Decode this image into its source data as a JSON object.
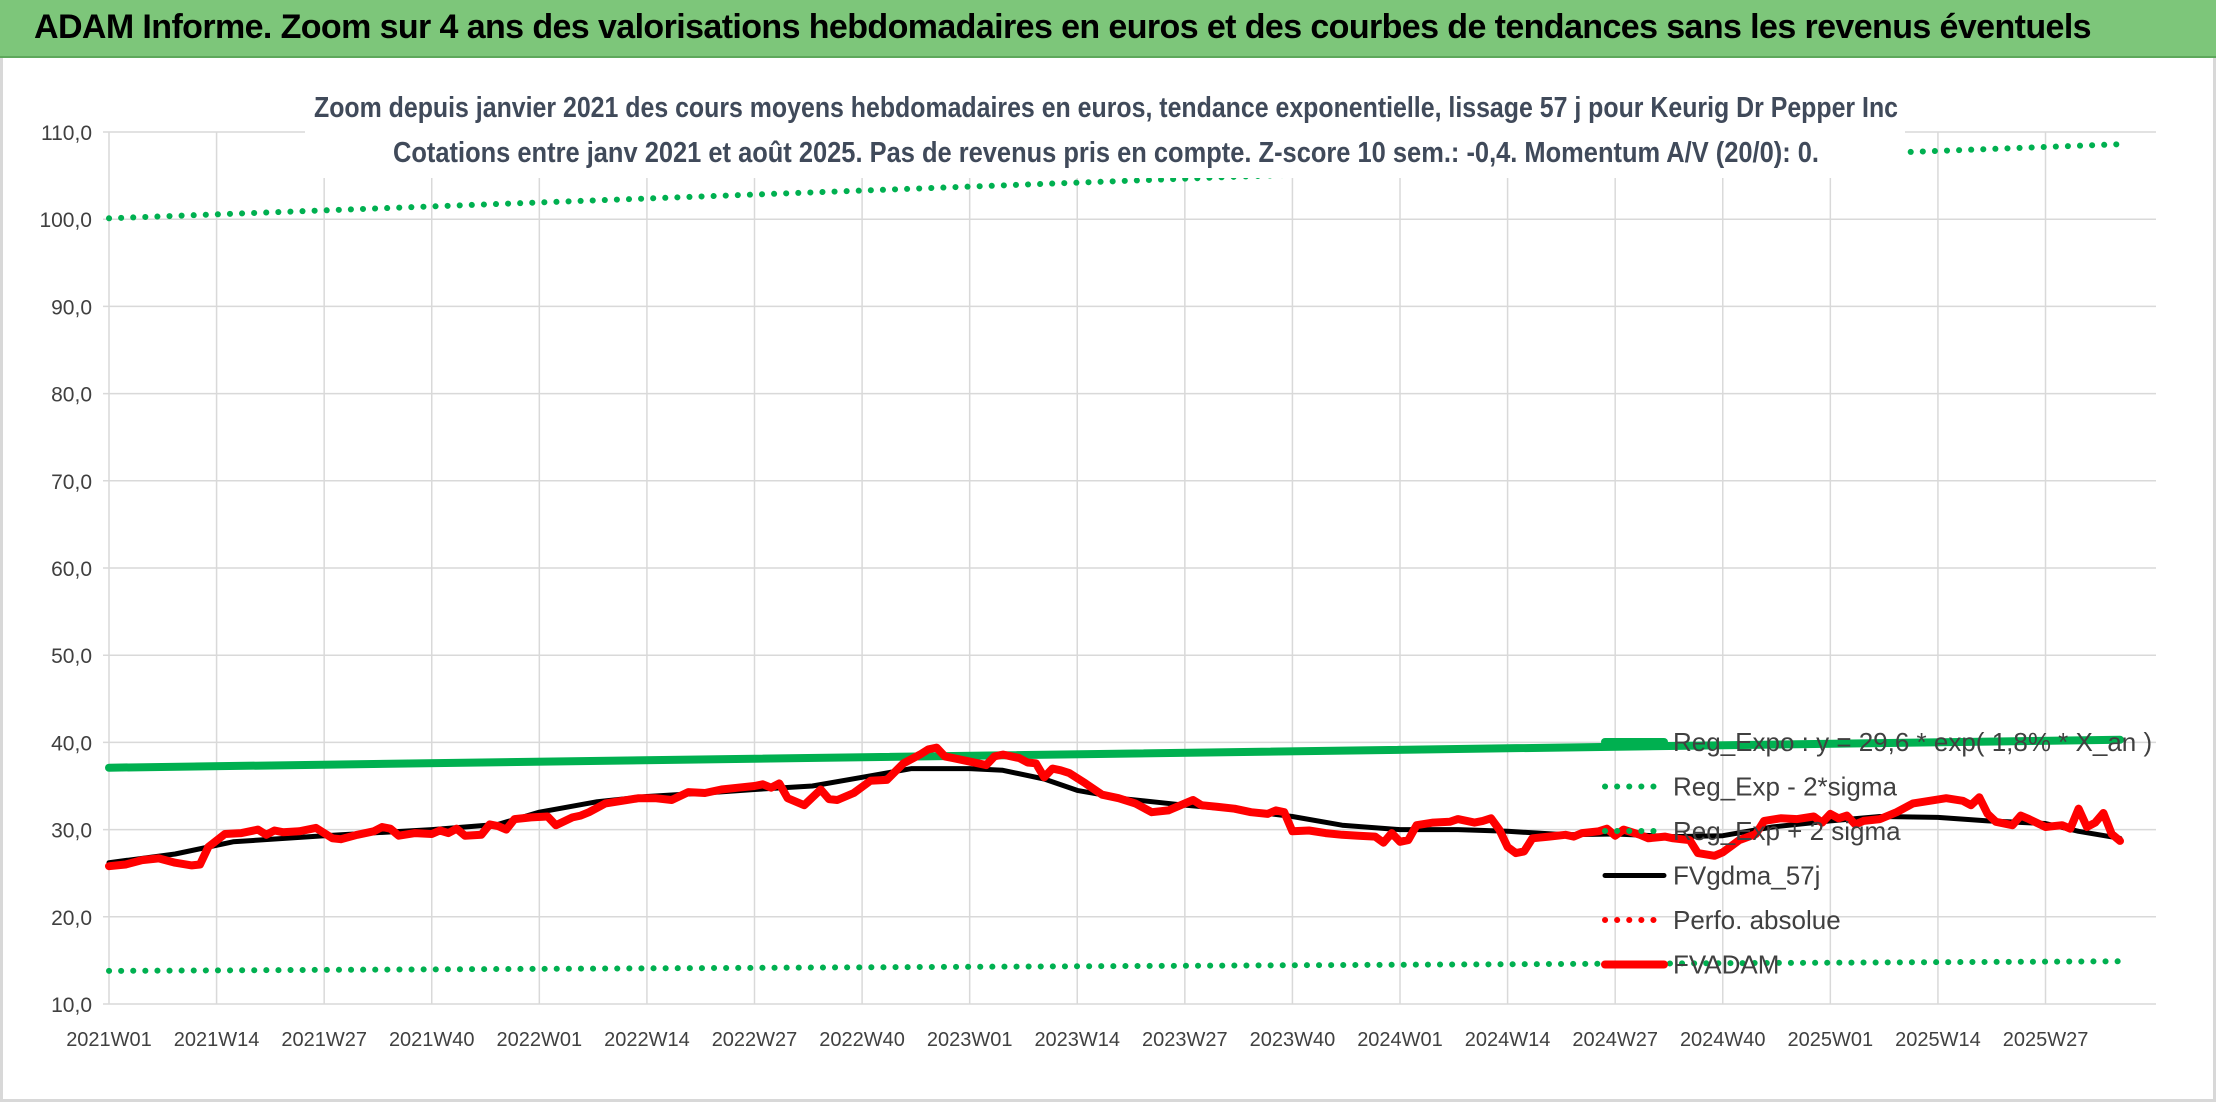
{
  "banner": {
    "title": "ADAM Informe. Zoom sur 4 ans des valorisations hebdomadaires en euros et des courbes de tendances sans les revenus éventuels"
  },
  "colors": {
    "banner_bg": "#7dc67a",
    "trend_green": "#00b050",
    "smooth_black": "#000000",
    "price_red": "#ff0000",
    "grid": "#d9d9d9"
  },
  "chart_data": {
    "type": "line",
    "title_lines": [
      "Zoom depuis janvier 2021 des cours moyens hebdomadaires en euros, tendance exponentielle, lissage 57 j pour Keurig Dr Pepper Inc",
      "Cotations entre janv 2021 et août 2025. Pas de revenus pris en compte. Z-score 10 sem.: -0,4. Momentum A/V (20/0): 0."
    ],
    "ylim": [
      10,
      110
    ],
    "y_ticks": [
      "10,0",
      "20,0",
      "30,0",
      "40,0",
      "50,0",
      "60,0",
      "70,0",
      "80,0",
      "90,0",
      "100,0",
      "110,0"
    ],
    "x_ticks": [
      "2021W01",
      "2021W14",
      "2021W27",
      "2021W40",
      "2022W01",
      "2022W14",
      "2022W27",
      "2022W40",
      "2023W01",
      "2023W14",
      "2023W27",
      "2023W40",
      "2024W01",
      "2024W14",
      "2024W27",
      "2024W40",
      "2025W01",
      "2025W14",
      "2025W27"
    ],
    "x_range_weeks": [
      0,
      243
    ],
    "grid": true,
    "legend_position": "right",
    "series": [
      {
        "name": "Reg_Expo : y = 29,6 * exp( 1,8% * X_an )",
        "style": "solid-thick",
        "color": "#00b050",
        "points": [
          [
            0,
            37.1
          ],
          [
            243,
            40.3
          ]
        ]
      },
      {
        "name": "Reg_Exp - 2*sigma",
        "style": "dotted",
        "color": "#00b050",
        "points": [
          [
            0,
            13.8
          ],
          [
            243,
            14.9
          ]
        ]
      },
      {
        "name": "Reg_Exp + 2 sigma",
        "style": "dotted",
        "color": "#00b050",
        "points": [
          [
            0,
            100.1
          ],
          [
            243,
            108.6
          ]
        ]
      },
      {
        "name": "FVgdma_57j",
        "style": "solid",
        "color": "#000000",
        "points": [
          [
            0,
            26.2
          ],
          [
            8,
            27.2
          ],
          [
            15,
            28.6
          ],
          [
            26,
            29.3
          ],
          [
            39,
            30.0
          ],
          [
            47,
            30.6
          ],
          [
            52,
            32.0
          ],
          [
            59,
            33.2
          ],
          [
            65,
            33.8
          ],
          [
            72,
            34.2
          ],
          [
            78,
            34.6
          ],
          [
            85,
            35.0
          ],
          [
            91,
            36.0
          ],
          [
            97,
            37.0
          ],
          [
            104,
            37.0
          ],
          [
            108,
            36.8
          ],
          [
            113,
            35.8
          ],
          [
            117,
            34.5
          ],
          [
            123,
            33.5
          ],
          [
            130,
            32.8
          ],
          [
            136,
            32.3
          ],
          [
            143,
            31.5
          ],
          [
            149,
            30.5
          ],
          [
            156,
            30.0
          ],
          [
            163,
            30.0
          ],
          [
            169,
            29.8
          ],
          [
            176,
            29.4
          ],
          [
            182,
            29.5
          ],
          [
            189,
            29.2
          ],
          [
            195,
            29.3
          ],
          [
            201,
            30.3
          ],
          [
            208,
            31.0
          ],
          [
            214,
            31.5
          ],
          [
            221,
            31.4
          ],
          [
            227,
            31.0
          ],
          [
            234,
            30.7
          ],
          [
            238,
            29.8
          ],
          [
            243,
            29.0
          ]
        ]
      },
      {
        "name": "Perfo. absolue",
        "style": "dotted",
        "color": "#ff0000",
        "points": []
      },
      {
        "name": "FVADAM",
        "style": "solid-thick",
        "color": "#ff0000",
        "points": [
          [
            0,
            25.8
          ],
          [
            2,
            26.0
          ],
          [
            4,
            26.5
          ],
          [
            6,
            26.7
          ],
          [
            8,
            26.2
          ],
          [
            10,
            25.9
          ],
          [
            11,
            26.0
          ],
          [
            12,
            28.0
          ],
          [
            14,
            29.5
          ],
          [
            16,
            29.6
          ],
          [
            18,
            30.0
          ],
          [
            19,
            29.4
          ],
          [
            20,
            29.9
          ],
          [
            21,
            29.7
          ],
          [
            23,
            29.8
          ],
          [
            25,
            30.2
          ],
          [
            27,
            29.0
          ],
          [
            28,
            28.9
          ],
          [
            30,
            29.4
          ],
          [
            32,
            29.8
          ],
          [
            33,
            30.3
          ],
          [
            34,
            30.1
          ],
          [
            35,
            29.3
          ],
          [
            37,
            29.6
          ],
          [
            39,
            29.5
          ],
          [
            40,
            29.9
          ],
          [
            41,
            29.6
          ],
          [
            42,
            30.1
          ],
          [
            43,
            29.3
          ],
          [
            45,
            29.4
          ],
          [
            46,
            30.6
          ],
          [
            47,
            30.4
          ],
          [
            48,
            30.0
          ],
          [
            49,
            31.2
          ],
          [
            51,
            31.4
          ],
          [
            53,
            31.5
          ],
          [
            54,
            30.5
          ],
          [
            56,
            31.4
          ],
          [
            57,
            31.6
          ],
          [
            58,
            32.0
          ],
          [
            60,
            33.0
          ],
          [
            62,
            33.3
          ],
          [
            64,
            33.6
          ],
          [
            66,
            33.6
          ],
          [
            68,
            33.4
          ],
          [
            70,
            34.3
          ],
          [
            72,
            34.2
          ],
          [
            74,
            34.6
          ],
          [
            76,
            34.8
          ],
          [
            78,
            35.0
          ],
          [
            79,
            35.2
          ],
          [
            80,
            34.8
          ],
          [
            81,
            35.3
          ],
          [
            82,
            33.6
          ],
          [
            84,
            32.8
          ],
          [
            86,
            34.6
          ],
          [
            87,
            33.5
          ],
          [
            88,
            33.4
          ],
          [
            90,
            34.2
          ],
          [
            92,
            35.6
          ],
          [
            94,
            35.7
          ],
          [
            96,
            37.6
          ],
          [
            98,
            38.6
          ],
          [
            99,
            39.2
          ],
          [
            100,
            39.4
          ],
          [
            101,
            38.4
          ],
          [
            102,
            38.2
          ],
          [
            104,
            37.8
          ],
          [
            106,
            37.4
          ],
          [
            107,
            38.4
          ],
          [
            108,
            38.6
          ],
          [
            110,
            38.2
          ],
          [
            111,
            37.7
          ],
          [
            112,
            37.6
          ],
          [
            113,
            36.0
          ],
          [
            114,
            37.0
          ],
          [
            115,
            36.8
          ],
          [
            116,
            36.5
          ],
          [
            118,
            35.3
          ],
          [
            120,
            34.0
          ],
          [
            122,
            33.6
          ],
          [
            124,
            33.0
          ],
          [
            126,
            32.0
          ],
          [
            128,
            32.2
          ],
          [
            130,
            33.0
          ],
          [
            131,
            33.4
          ],
          [
            132,
            32.8
          ],
          [
            134,
            32.6
          ],
          [
            136,
            32.4
          ],
          [
            138,
            32.0
          ],
          [
            140,
            31.8
          ],
          [
            141,
            32.2
          ],
          [
            142,
            32.0
          ],
          [
            143,
            29.8
          ],
          [
            145,
            29.9
          ],
          [
            147,
            29.6
          ],
          [
            149,
            29.4
          ],
          [
            151,
            29.3
          ],
          [
            153,
            29.2
          ],
          [
            154,
            28.5
          ],
          [
            155,
            29.6
          ],
          [
            156,
            28.6
          ],
          [
            157,
            28.8
          ],
          [
            158,
            30.5
          ],
          [
            160,
            30.8
          ],
          [
            162,
            30.9
          ],
          [
            163,
            31.2
          ],
          [
            165,
            30.8
          ],
          [
            166,
            31.0
          ],
          [
            167,
            31.3
          ],
          [
            168,
            30.0
          ],
          [
            169,
            28.0
          ],
          [
            170,
            27.3
          ],
          [
            171,
            27.5
          ],
          [
            172,
            29.0
          ],
          [
            174,
            29.2
          ],
          [
            176,
            29.4
          ],
          [
            177,
            29.2
          ],
          [
            178,
            29.6
          ],
          [
            180,
            29.8
          ],
          [
            181,
            30.1
          ],
          [
            182,
            29.3
          ],
          [
            183,
            30.0
          ],
          [
            184,
            29.7
          ],
          [
            185,
            29.4
          ],
          [
            186,
            29.0
          ],
          [
            188,
            29.2
          ],
          [
            189,
            29.0
          ],
          [
            191,
            28.8
          ],
          [
            192,
            27.3
          ],
          [
            194,
            27.0
          ],
          [
            195,
            27.4
          ],
          [
            197,
            28.8
          ],
          [
            199,
            29.5
          ],
          [
            200,
            31.0
          ],
          [
            202,
            31.3
          ],
          [
            204,
            31.2
          ],
          [
            206,
            31.5
          ],
          [
            207,
            30.8
          ],
          [
            208,
            31.8
          ],
          [
            209,
            31.3
          ],
          [
            210,
            31.6
          ],
          [
            211,
            30.6
          ],
          [
            212,
            31.0
          ],
          [
            214,
            31.2
          ],
          [
            216,
            32.0
          ],
          [
            218,
            33.0
          ],
          [
            220,
            33.3
          ],
          [
            222,
            33.6
          ],
          [
            224,
            33.3
          ],
          [
            225,
            32.8
          ],
          [
            226,
            33.7
          ],
          [
            227,
            31.8
          ],
          [
            228,
            30.9
          ],
          [
            230,
            30.5
          ],
          [
            231,
            31.6
          ],
          [
            232,
            31.2
          ],
          [
            234,
            30.3
          ],
          [
            236,
            30.5
          ],
          [
            237,
            30.1
          ],
          [
            238,
            32.4
          ],
          [
            239,
            30.3
          ],
          [
            240,
            30.8
          ],
          [
            241,
            31.9
          ],
          [
            242,
            29.5
          ],
          [
            243,
            28.7
          ]
        ]
      }
    ]
  }
}
